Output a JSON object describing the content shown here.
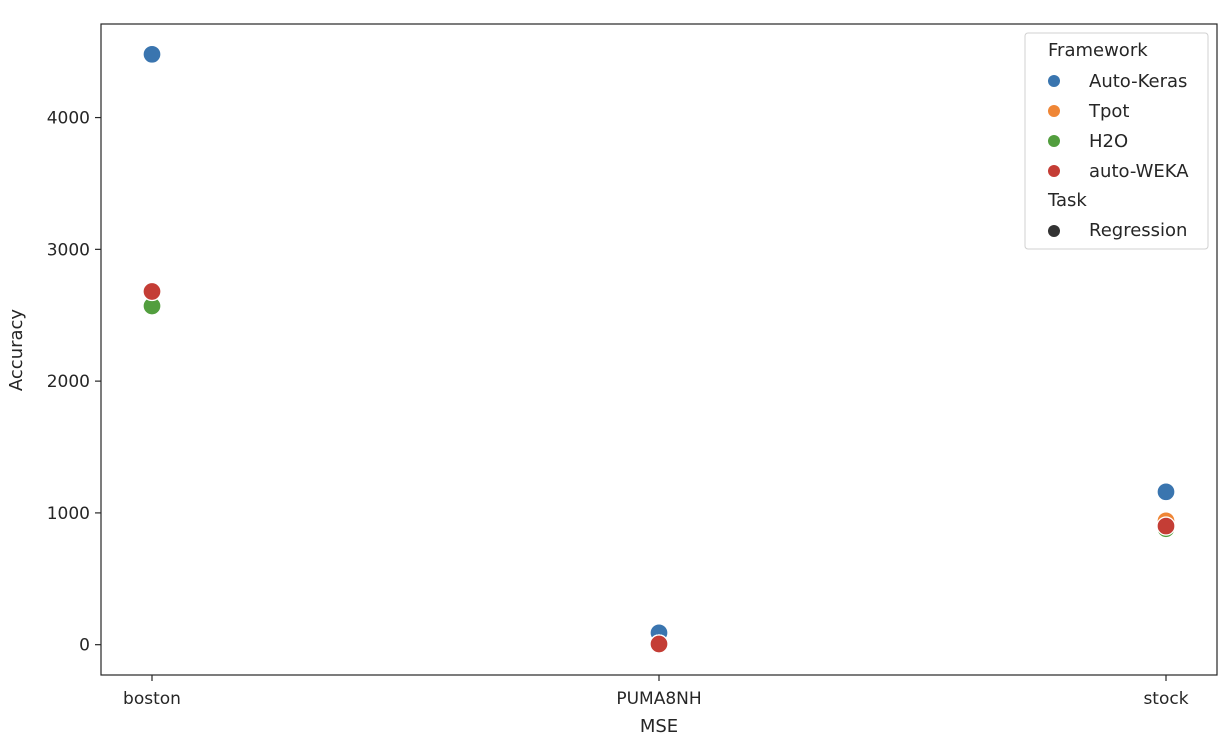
{
  "chart_data": {
    "type": "scatter",
    "title": "",
    "xlabel": "MSE",
    "ylabel": "Accuracy",
    "categories": [
      "boston",
      "PUMA8NH",
      "stock"
    ],
    "yticks": [
      0,
      1000,
      2000,
      3000,
      4000
    ],
    "ylim": [
      -230,
      4710
    ],
    "grid": false,
    "legend": {
      "placement": "top-right",
      "hue_title": "Framework",
      "style_title": "Task",
      "style_entries": [
        "Regression"
      ]
    },
    "series": [
      {
        "name": "Auto-Keras",
        "color": "#3a75af",
        "values": [
          4480,
          90,
          1160
        ]
      },
      {
        "name": "Tpot",
        "color": "#ef8636",
        "values": [
          2680,
          5,
          940
        ]
      },
      {
        "name": "H2O",
        "color": "#529e3e",
        "values": [
          2570,
          5,
          880
        ]
      },
      {
        "name": "auto-WEKA",
        "color": "#c43d35",
        "values": [
          2680,
          5,
          900
        ]
      }
    ]
  }
}
